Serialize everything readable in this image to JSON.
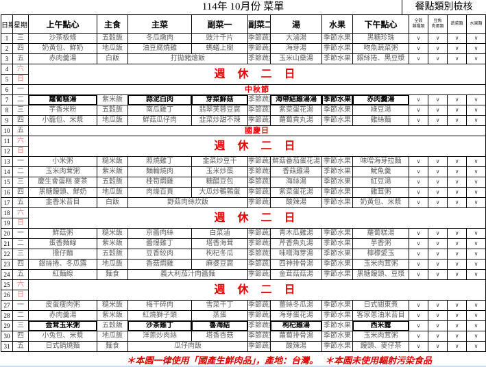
{
  "title": "114年 10月份 菜單",
  "check_title": "餐點類別檢核",
  "columns": [
    "日期",
    "星期",
    "上午點心",
    "主食",
    "主菜",
    "副菜一",
    "副菜二",
    "湯",
    "水果",
    "下午點心"
  ],
  "check_columns": [
    "全穀\n雜糧類",
    "豆魚\n肉蛋類",
    "蔬菜類",
    "水果類"
  ],
  "labels": {
    "weekend": "週 休 二 日"
  },
  "notes": [
    "＊本園一律使用「國產生鮮肉品」，產地：台灣。",
    "＊本園未使用輻射污染食品"
  ],
  "rows": [
    {
      "date": "1",
      "weekday": "三",
      "type": "meal",
      "cells": [
        "沙茶板條",
        "五穀飯",
        "冬瓜燉肉",
        "豉汁千片",
        "季節蔬菜",
        "大滷湯",
        "季節水果",
        "黑糖珍珠"
      ],
      "checks": [
        "∨",
        "∨",
        "∨",
        "∨"
      ]
    },
    {
      "date": "2",
      "weekday": "四",
      "type": "meal",
      "cells": [
        "奶黃包、鮮奶",
        "地瓜飯",
        "油豆腐燒雞",
        "螞蟻上樹",
        "季節蔬菜",
        "海芽湯",
        "季節水果",
        "吻魚蔬菜粥"
      ],
      "checks": [
        "∨",
        "∨",
        "∨",
        "∨"
      ]
    },
    {
      "date": "3",
      "weekday": "五",
      "type": "meal",
      "merged_main": true,
      "cells": [
        "赤肉羹湯",
        "白飯",
        "打拋豬燴飯",
        "季節蔬菜",
        "玉米山藥湯",
        "季節水果",
        "銀絲捲、黑豆漿"
      ],
      "checks": [
        "∨",
        "∨",
        "∨",
        "∨"
      ]
    },
    {
      "date": "4",
      "weekday": "六",
      "type": "weekend"
    },
    {
      "date": "5",
      "weekday": "日",
      "type": "weekend2"
    },
    {
      "date": "6",
      "weekday": "一",
      "type": "holiday",
      "label": "中秋節"
    },
    {
      "date": "7",
      "weekday": "二",
      "type": "meal",
      "bold": [
        0,
        2,
        3,
        5,
        6,
        7
      ],
      "cells": [
        "蘿蔔糕湯",
        "紫米飯",
        "蒜泥白肉",
        "芽菜鮮菇",
        "季節蔬菜",
        "海帶結雞湯湯",
        "季節水果",
        "赤肉羹湯"
      ],
      "checks": [
        "∨",
        "∨",
        "∨",
        "∨"
      ]
    },
    {
      "date": "8",
      "weekday": "三",
      "type": "meal",
      "cells": [
        "芋香米粉",
        "五穀飯",
        "南瓜雞丁",
        "翡翠芙蓉豆腐",
        "季節蔬菜",
        "紫菜蛋花湯",
        "季節水果",
        "綠豆湯"
      ],
      "checks": [
        "∨",
        "∨",
        "∨",
        "∨"
      ]
    },
    {
      "date": "9",
      "weekday": "四",
      "type": "meal",
      "cells": [
        "小籠包、米漿",
        "地瓜飯",
        "鮮菇瓜仔肉",
        "韭菜炒甜不辣",
        "季節蔬菜",
        "蘿蔔貢丸湯",
        "季節水果",
        "雞絲麵"
      ],
      "checks": [
        "∨",
        "∨",
        "∨",
        "∨"
      ]
    },
    {
      "date": "10",
      "weekday": "五",
      "type": "holiday",
      "label": "國慶日"
    },
    {
      "date": "11",
      "weekday": "六",
      "type": "weekend"
    },
    {
      "date": "12",
      "weekday": "日",
      "type": "weekend2"
    },
    {
      "date": "13",
      "weekday": "一",
      "type": "meal",
      "cells": [
        "小米粥",
        "糙米飯",
        "照燒雞丁",
        "韭菜炒豆干",
        "季節蔬菜",
        "鮮菇番茄蛋花湯",
        "季節水果",
        "味噌海芽拉麵"
      ],
      "checks": [
        "∨",
        "∨",
        "∨",
        "∨"
      ]
    },
    {
      "date": "14",
      "weekday": "二",
      "type": "meal",
      "cells": [
        "玉米肉茸粥",
        "紫米飯",
        "麵輪燒肉",
        "玉米炒蛋",
        "季節蔬菜",
        "香菇雞湯",
        "季節水果",
        "魷魚羹"
      ],
      "checks": [
        "∨",
        "∨",
        "∨",
        "∨"
      ]
    },
    {
      "date": "15",
      "weekday": "三",
      "type": "meal",
      "cells": [
        "慶生會蛋糕 麥茶",
        "五穀飯",
        "桂筍燜雞",
        "糖醋豆包",
        "季節蔬菜",
        "海絲湯",
        "季節水果",
        "紅豆湯"
      ],
      "checks": [
        "∨",
        "∨",
        "∨",
        "∨"
      ]
    },
    {
      "date": "16",
      "weekday": "四",
      "type": "meal",
      "cells": [
        "黑糖饅頭、鮮奶",
        "地瓜飯",
        "肉燥百頁",
        "大瓜炒鵪鶉蛋",
        "季節蔬菜",
        "紫菜蛋花湯",
        "季節水果",
        "雞茸粥"
      ],
      "checks": [
        "∨",
        "∨",
        "∨",
        "∨"
      ]
    },
    {
      "date": "17",
      "weekday": "五",
      "type": "meal",
      "merged_main": true,
      "cells": [
        "韭香米苔目",
        "白飯",
        "野菇肉絲炊飯",
        "季節蔬菜",
        "酸辣湯",
        "季節水果",
        "奶黃包、米漿"
      ],
      "checks": [
        "∨",
        "∨",
        "∨",
        "∨"
      ]
    },
    {
      "date": "18",
      "weekday": "六",
      "type": "weekend"
    },
    {
      "date": "19",
      "weekday": "日",
      "type": "weekend2"
    },
    {
      "date": "20",
      "weekday": "一",
      "type": "meal",
      "cells": [
        "鮮菇粥",
        "糙米飯",
        "京醬肉絲",
        "白菜滷",
        "季節蔬菜",
        "青木瓜雞湯",
        "季節水果",
        "蘿蔔糕湯"
      ],
      "checks": [
        "∨",
        "∨",
        "∨",
        "∨"
      ]
    },
    {
      "date": "21",
      "weekday": "二",
      "type": "meal",
      "cells": [
        "蛋香麵線",
        "紫米飯",
        "醬爆雞丁",
        "塔香海茸",
        "季節蔬菜",
        "芹香魚丸湯",
        "季節水果",
        "芋香粥"
      ],
      "checks": [
        "∨",
        "∨",
        "∨",
        "∨"
      ]
    },
    {
      "date": "22",
      "weekday": "三",
      "type": "meal",
      "cells": [
        "擔仔麵",
        "五穀飯",
        "豆香絞肉",
        "枸杞冬瓜",
        "季節蔬菜",
        "味噌海芽湯",
        "季節水果",
        "檸檬愛玉"
      ],
      "checks": [
        "∨",
        "∨",
        "∨",
        "∨"
      ]
    },
    {
      "date": "23",
      "weekday": "四",
      "type": "meal",
      "cells": [
        "銀絲捲、冬瓜露",
        "地瓜飯",
        "香菇燜雞",
        "麻婆豆腐",
        "季節蔬菜",
        "四神排骨湯",
        "季節水果",
        "玉米肉茸粥"
      ],
      "checks": [
        "∨",
        "∨",
        "∨",
        "∨"
      ]
    },
    {
      "date": "24",
      "weekday": "五",
      "type": "meal",
      "merged_main": true,
      "cells": [
        "紅麵線",
        "麵食",
        "義大利茄汁肉醬麵",
        "季節蔬菜",
        "金茸菇菇湯",
        "季節水果",
        "黑糖饅頭、豆漿"
      ],
      "checks": [
        "∨",
        "∨",
        "∨",
        "∨"
      ]
    },
    {
      "date": "25",
      "weekday": "六",
      "type": "weekend"
    },
    {
      "date": "26",
      "weekday": "日",
      "type": "weekend2"
    },
    {
      "date": "27",
      "weekday": "一",
      "type": "meal",
      "cells": [
        "皮蛋瘦肉粥",
        "糙米飯",
        "梅干碎肉",
        "雪菜干丁",
        "季節蔬菜",
        "薑絲冬瓜湯",
        "季節水果",
        "日式關東煮"
      ],
      "checks": [
        "∨",
        "∨",
        "∨",
        "∨"
      ]
    },
    {
      "date": "28",
      "weekday": "二",
      "type": "meal",
      "cells": [
        "赤肉羹湯",
        "紫米飯",
        "紅燒獅子頭",
        "蒸蛋",
        "季節蔬菜",
        "海芽蛋花湯",
        "季節水果",
        "客家蔥油米苔目"
      ],
      "checks": [
        "∨",
        "∨",
        "∨",
        "∨"
      ]
    },
    {
      "date": "29",
      "weekday": "三",
      "type": "meal",
      "bold": [
        0,
        2,
        3,
        5,
        7
      ],
      "cells": [
        "金茸玉米粥",
        "五穀飯",
        "沙茶雞丁",
        "魯海結",
        "季節蔬菜",
        "枸杞雞湯",
        "季節水果",
        "西米露"
      ],
      "checks": [
        "∨",
        "∨",
        "∨",
        "∨"
      ]
    },
    {
      "date": "30",
      "weekday": "四",
      "type": "meal",
      "cells": [
        "小兔包、米漿",
        "地瓜飯",
        "洋蔥炒肉絲",
        "塔香杏菇",
        "季節蔬菜",
        "蘿蔔排骨湯",
        "季節水果",
        "玉米肉茸粥"
      ],
      "checks": [
        "∨",
        "∨",
        "∨",
        "∨"
      ]
    },
    {
      "date": "31",
      "weekday": "五",
      "type": "meal",
      "merged_main": true,
      "cells": [
        "日式鍋燒麵",
        "麵食",
        "瓜仔肉飯",
        "季節蔬菜",
        "酸辣湯",
        "季節水果",
        "饅頭、麥仔茶"
      ],
      "checks": [
        "∨",
        "∨",
        "∨",
        "∨"
      ]
    }
  ]
}
